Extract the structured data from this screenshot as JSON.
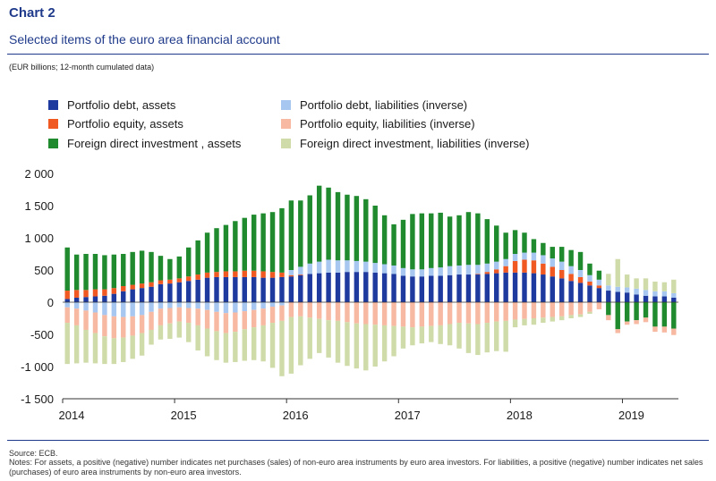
{
  "header": {
    "title": "Chart 2",
    "subtitle": "Selected items of the euro area financial account",
    "units": "(EUR billions; 12-month cumulated data)"
  },
  "footer": {
    "source": "Source: ECB.",
    "notes": "Notes: For assets, a positive (negative) number indicates net purchases (sales) of non-euro area instruments by euro area investors. For liabilities, a positive (negative) number indicates net sales (purchases) of euro area instruments by non-euro area investors."
  },
  "colors": {
    "pd_assets": "#1f3a9e",
    "pe_assets": "#f05a22",
    "fdi_assets": "#1f8a2e",
    "pd_liab": "#a7c7f0",
    "pe_liab": "#f7b9a2",
    "fdi_liab": "#cfdcaa",
    "rule": "#1f3a8a"
  },
  "chart_data": {
    "type": "bar",
    "stacked": true,
    "x": [
      "2014-01",
      "2014-02",
      "2014-03",
      "2014-04",
      "2014-05",
      "2014-06",
      "2014-07",
      "2014-08",
      "2014-09",
      "2014-10",
      "2014-11",
      "2014-12",
      "2015-01",
      "2015-02",
      "2015-03",
      "2015-04",
      "2015-05",
      "2015-06",
      "2015-07",
      "2015-08",
      "2015-09",
      "2015-10",
      "2015-11",
      "2015-12",
      "2016-01",
      "2016-02",
      "2016-03",
      "2016-04",
      "2016-05",
      "2016-06",
      "2016-07",
      "2016-08",
      "2016-09",
      "2016-10",
      "2016-11",
      "2016-12",
      "2017-01",
      "2017-02",
      "2017-03",
      "2017-04",
      "2017-05",
      "2017-06",
      "2017-07",
      "2017-08",
      "2017-09",
      "2017-10",
      "2017-11",
      "2017-12",
      "2018-01",
      "2018-02",
      "2018-03",
      "2018-04",
      "2018-05",
      "2018-06",
      "2018-07",
      "2018-08",
      "2018-09",
      "2018-10",
      "2018-11",
      "2018-12",
      "2019-01",
      "2019-02",
      "2019-03",
      "2019-04",
      "2019-05",
      "2019-06"
    ],
    "x_ticks": [
      "2014",
      "2015",
      "2016",
      "2017",
      "2018",
      "2019"
    ],
    "ylim": [
      -1500,
      2000
    ],
    "y_ticks": [
      2000,
      1500,
      1000,
      500,
      0,
      -500,
      -1000,
      -1500
    ],
    "y_tick_labels": [
      "2 000",
      "1 500",
      "1 000",
      "500",
      "0",
      "-500",
      "-1 000",
      "-1 500"
    ],
    "legend": "top",
    "grid": false,
    "series": [
      {
        "name": "Portfolio debt, assets",
        "key": "pd_assets",
        "values": [
          50,
          70,
          80,
          90,
          100,
          130,
          170,
          200,
          220,
          240,
          280,
          290,
          310,
          330,
          350,
          380,
          390,
          390,
          390,
          390,
          390,
          380,
          380,
          390,
          400,
          420,
          440,
          450,
          460,
          460,
          470,
          470,
          470,
          460,
          450,
          440,
          410,
          400,
          400,
          410,
          410,
          420,
          430,
          430,
          430,
          440,
          450,
          460,
          460,
          460,
          450,
          430,
          400,
          370,
          330,
          300,
          260,
          220,
          180,
          160,
          150,
          120,
          100,
          90,
          90,
          70
        ]
      },
      {
        "name": "Portfolio equity, assets",
        "key": "pe_assets",
        "values": [
          130,
          120,
          110,
          110,
          100,
          90,
          80,
          70,
          70,
          70,
          60,
          60,
          60,
          70,
          80,
          80,
          80,
          90,
          90,
          100,
          100,
          100,
          90,
          70,
          20,
          10,
          0,
          0,
          0,
          0,
          0,
          0,
          0,
          0,
          0,
          0,
          0,
          0,
          0,
          0,
          0,
          0,
          0,
          0,
          10,
          30,
          60,
          100,
          180,
          200,
          200,
          170,
          150,
          130,
          110,
          90,
          60,
          40,
          0,
          0,
          0,
          0,
          0,
          0,
          0,
          0
        ]
      },
      {
        "name": "Foreign direct investment , assets",
        "key": "fdi_assets",
        "values": [
          670,
          550,
          560,
          550,
          530,
          520,
          500,
          510,
          510,
          470,
          380,
          320,
          340,
          450,
          530,
          620,
          680,
          720,
          780,
          820,
          870,
          900,
          930,
          1000,
          1080,
          1030,
          1060,
          1180,
          1120,
          1060,
          1020,
          1010,
          970,
          890,
          760,
          640,
          750,
          860,
          870,
          850,
          850,
          770,
          780,
          820,
          800,
          690,
          560,
          410,
          370,
          310,
          210,
          190,
          180,
          230,
          250,
          280,
          180,
          140,
          -200,
          -420,
          -300,
          -280,
          -240,
          -380,
          -380,
          -410
        ]
      },
      {
        "name": "Portfolio debt, liabilities (inverse)",
        "key": "pd_liab",
        "values": [
          -80,
          -100,
          -130,
          -160,
          -200,
          -220,
          -230,
          -220,
          -200,
          -150,
          -100,
          -90,
          -80,
          -90,
          -100,
          -120,
          -150,
          -170,
          -160,
          -140,
          -120,
          -100,
          -70,
          -50,
          80,
          120,
          160,
          180,
          200,
          190,
          180,
          170,
          160,
          150,
          140,
          130,
          120,
          110,
          110,
          120,
          130,
          140,
          140,
          150,
          140,
          130,
          120,
          110,
          110,
          110,
          120,
          130,
          130,
          130,
          120,
          110,
          100,
          90,
          80,
          80,
          80,
          90,
          90,
          80,
          80,
          70
        ]
      },
      {
        "name": "Portfolio equity, liabilities (inverse)",
        "key": "pe_liab",
        "values": [
          -240,
          -260,
          -300,
          -320,
          -330,
          -340,
          -320,
          -300,
          -280,
          -280,
          -260,
          -240,
          -220,
          -230,
          -260,
          -290,
          -300,
          -310,
          -300,
          -280,
          -270,
          -260,
          -250,
          -240,
          -230,
          -220,
          -240,
          -260,
          -280,
          -290,
          -310,
          -330,
          -340,
          -350,
          -360,
          -370,
          -380,
          -390,
          -380,
          -370,
          -360,
          -340,
          -320,
          -330,
          -340,
          -320,
          -300,
          -290,
          -270,
          -260,
          -250,
          -240,
          -230,
          -220,
          -200,
          -190,
          -150,
          -110,
          -80,
          -60,
          -50,
          -60,
          -70,
          -80,
          -90,
          -100
        ]
      },
      {
        "name": "Foreign direct investment, liabilities (inverse)",
        "key": "fdi_liab",
        "values": [
          -640,
          -590,
          -510,
          -470,
          -430,
          -400,
          -380,
          -360,
          -350,
          -230,
          -220,
          -240,
          -250,
          -300,
          -390,
          -430,
          -450,
          -460,
          -470,
          -490,
          -510,
          -560,
          -700,
          -860,
          -880,
          -760,
          -640,
          -530,
          -580,
          -650,
          -680,
          -700,
          -720,
          -650,
          -560,
          -470,
          -340,
          -280,
          -260,
          -250,
          -290,
          -330,
          -400,
          -460,
          -480,
          -460,
          -460,
          -480,
          -120,
          -100,
          -100,
          -80,
          -70,
          -60,
          -50,
          -40,
          -30,
          0,
          180,
          430,
          200,
          160,
          180,
          150,
          140,
          210
        ]
      }
    ]
  }
}
